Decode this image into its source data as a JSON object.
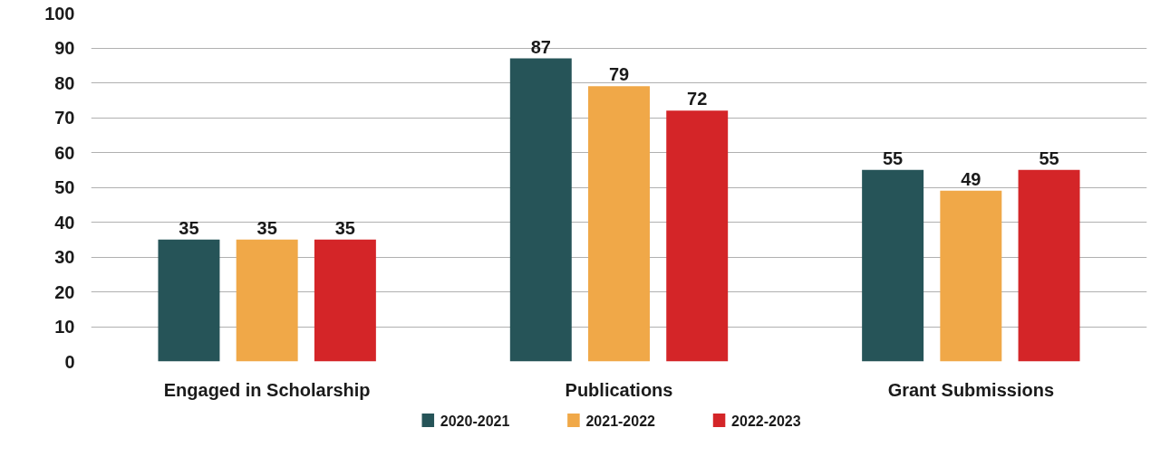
{
  "chart_data": {
    "type": "bar",
    "categories": [
      "Engaged in Scholarship",
      "Publications",
      "Grant Submissions"
    ],
    "series": [
      {
        "name": "2020-2021",
        "color": "#265458",
        "values": [
          35,
          87,
          55
        ]
      },
      {
        "name": "2021-2022",
        "color": "#f0a848",
        "values": [
          35,
          79,
          49
        ]
      },
      {
        "name": "2022-2023",
        "color": "#d42528",
        "values": [
          35,
          72,
          55
        ]
      }
    ],
    "ylim": [
      0,
      100
    ],
    "yticks": [
      0,
      10,
      20,
      30,
      40,
      50,
      60,
      70,
      80,
      90,
      100
    ],
    "grid": "y",
    "legend": "bottom",
    "data_labels": true
  }
}
